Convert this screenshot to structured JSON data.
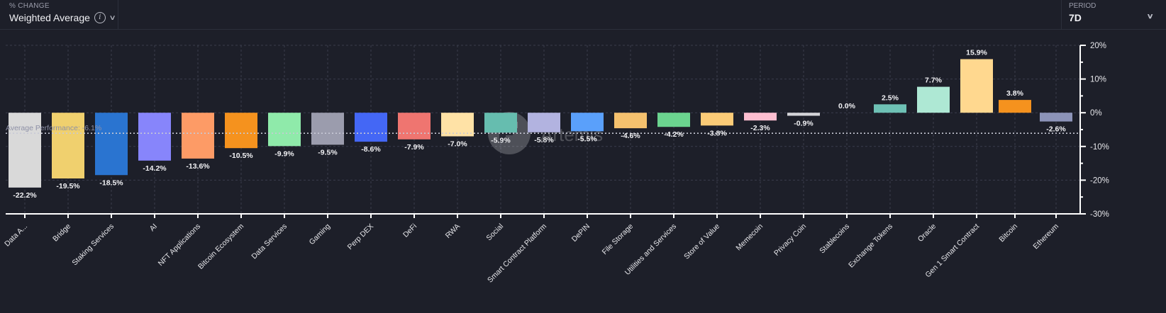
{
  "header": {
    "metric_kicker": "% CHANGE",
    "metric_value": "Weighted Average",
    "info_icon": "info-icon",
    "period_kicker": "PERIOD",
    "period_value": "7D"
  },
  "watermark": "Artemis",
  "chart_data": {
    "type": "bar",
    "title": "% Change (Weighted Average, 7D)",
    "xlabel": "",
    "ylabel": "",
    "ylim": [
      -30,
      20
    ],
    "yticks": [
      20,
      10,
      0,
      -10,
      -20,
      -30
    ],
    "ytick_labels": [
      "20%",
      "10%",
      "0%",
      "-10%",
      "-20%",
      "-30%"
    ],
    "grid": true,
    "average": {
      "label": "Average Performance: -6.1%",
      "value": -6.1
    },
    "categories": [
      "Data A...",
      "Bridge",
      "Staking Services",
      "AI",
      "NFT Applications",
      "Bitcoin Ecosystem",
      "Data Services",
      "Gaming",
      "Perp DEX",
      "DeFi",
      "RWA",
      "Social",
      "Smart Contract Platform",
      "DePIN",
      "File Storage",
      "Utilities and Services",
      "Store of Value",
      "Memecoin",
      "Privacy Coin",
      "Stablecoins",
      "Exchange Tokens",
      "Oracle",
      "Gen 1 Smart Contract",
      "Bitcoin",
      "Ethereum"
    ],
    "values": [
      -22.2,
      -19.5,
      -18.5,
      -14.2,
      -13.6,
      -10.5,
      -9.9,
      -9.5,
      -8.6,
      -7.9,
      -7.0,
      -5.9,
      -5.8,
      -5.5,
      -4.6,
      -4.2,
      -3.8,
      -2.3,
      -0.9,
      0.0,
      2.5,
      7.7,
      15.9,
      3.8,
      -2.6
    ],
    "value_labels": [
      "-22.2%",
      "-19.5%",
      "-18.5%",
      "-14.2%",
      "-13.6%",
      "-10.5%",
      "-9.9%",
      "-9.5%",
      "-8.6%",
      "-7.9%",
      "-7.0%",
      "-5.9%",
      "-5.8%",
      "-5.5%",
      "-4.6%",
      "-4.2%",
      "-3.8%",
      "-2.3%",
      "-0.9%",
      "0.0%",
      "2.5%",
      "7.7%",
      "15.9%",
      "3.8%",
      "-2.6%"
    ],
    "colors": [
      "#d9d9d9",
      "#f0d06e",
      "#2a74d0",
      "#8785fb",
      "#fd9b66",
      "#f5921e",
      "#8feaaa",
      "#9b9cad",
      "#4467f5",
      "#ef7570",
      "#ffe2a6",
      "#66bdaf",
      "#b2b3e0",
      "#5aa0fb",
      "#f5c16e",
      "#6bd48f",
      "#fbcb77",
      "#fcbed0",
      "#d4d4d8",
      "#9ecfc9",
      "#6ec1b5",
      "#aee8d4",
      "#ffd88f",
      "#f5921e",
      "#8c93b8"
    ]
  }
}
